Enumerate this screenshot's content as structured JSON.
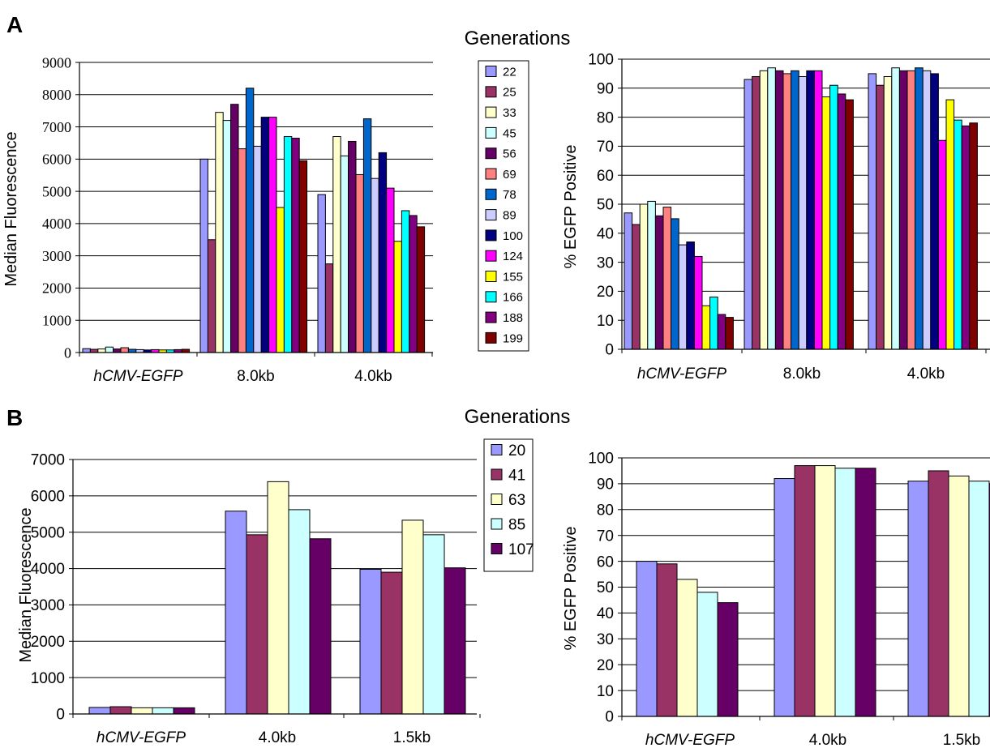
{
  "panels": {
    "A": {
      "label": "A",
      "generations_title": "Generations"
    },
    "B": {
      "label": "B",
      "generations_title": "Generations"
    }
  },
  "chart_data": [
    {
      "id": "A-left",
      "type": "bar",
      "ylabel": "Median Fluorescence",
      "xlabel": "",
      "categories": [
        "hCMV-EGFP",
        "8.0kb",
        "4.0kb"
      ],
      "ylim": [
        0,
        9000
      ],
      "yticks": [
        0,
        1000,
        2000,
        3000,
        4000,
        5000,
        6000,
        7000,
        8000,
        9000
      ],
      "grid": true,
      "series": [
        {
          "name": "22",
          "color": "#9999ff",
          "values": [
            120,
            6000,
            4900
          ]
        },
        {
          "name": "25",
          "color": "#993366",
          "values": [
            100,
            3500,
            2750
          ]
        },
        {
          "name": "33",
          "color": "#ffffcc",
          "values": [
            110,
            7450,
            6700
          ]
        },
        {
          "name": "45",
          "color": "#ccffff",
          "values": [
            170,
            7200,
            6100
          ]
        },
        {
          "name": "56",
          "color": "#660066",
          "values": [
            110,
            7700,
            6550
          ]
        },
        {
          "name": "69",
          "color": "#ff8080",
          "values": [
            150,
            6320,
            5520
          ]
        },
        {
          "name": "78",
          "color": "#0066cc",
          "values": [
            100,
            8200,
            7250
          ]
        },
        {
          "name": "89",
          "color": "#ccccff",
          "values": [
            90,
            6400,
            5400
          ]
        },
        {
          "name": "100",
          "color": "#000080",
          "values": [
            80,
            7300,
            6200
          ]
        },
        {
          "name": "124",
          "color": "#ff00ff",
          "values": [
            90,
            7300,
            5100
          ]
        },
        {
          "name": "155",
          "color": "#ffff00",
          "values": [
            80,
            4500,
            3450
          ]
        },
        {
          "name": "166",
          "color": "#00ffff",
          "values": [
            80,
            6700,
            4400
          ]
        },
        {
          "name": "188",
          "color": "#800080",
          "values": [
            90,
            6650,
            4250
          ]
        },
        {
          "name": "199",
          "color": "#800000",
          "values": [
            100,
            5950,
            3900
          ]
        }
      ]
    },
    {
      "id": "A-right",
      "type": "bar",
      "ylabel": "% EGFP Positive",
      "xlabel": "",
      "categories": [
        "hCMV-EGFP",
        "8.0kb",
        "4.0kb"
      ],
      "ylim": [
        0,
        100
      ],
      "yticks": [
        0,
        10,
        20,
        30,
        40,
        50,
        60,
        70,
        80,
        90,
        100
      ],
      "grid": true,
      "series": [
        {
          "name": "22",
          "color": "#9999ff",
          "values": [
            47,
            93,
            95
          ]
        },
        {
          "name": "25",
          "color": "#993366",
          "values": [
            43,
            94,
            91
          ]
        },
        {
          "name": "33",
          "color": "#ffffcc",
          "values": [
            50,
            96,
            94
          ]
        },
        {
          "name": "45",
          "color": "#ccffff",
          "values": [
            51,
            97,
            97
          ]
        },
        {
          "name": "56",
          "color": "#660066",
          "values": [
            46,
            96,
            96
          ]
        },
        {
          "name": "69",
          "color": "#ff8080",
          "values": [
            49,
            95,
            96
          ]
        },
        {
          "name": "78",
          "color": "#0066cc",
          "values": [
            45,
            96,
            97
          ]
        },
        {
          "name": "89",
          "color": "#ccccff",
          "values": [
            36,
            94,
            96
          ]
        },
        {
          "name": "100",
          "color": "#000080",
          "values": [
            37,
            96,
            95
          ]
        },
        {
          "name": "124",
          "color": "#ff00ff",
          "values": [
            32,
            96,
            72
          ]
        },
        {
          "name": "155",
          "color": "#ffff00",
          "values": [
            15,
            87,
            86
          ]
        },
        {
          "name": "166",
          "color": "#00ffff",
          "values": [
            18,
            91,
            79
          ]
        },
        {
          "name": "188",
          "color": "#800080",
          "values": [
            12,
            88,
            77
          ]
        },
        {
          "name": "199",
          "color": "#800000",
          "values": [
            11,
            86,
            78
          ]
        }
      ]
    },
    {
      "id": "B-left",
      "type": "bar",
      "ylabel": "Median Fluorescence",
      "xlabel": "",
      "categories": [
        "hCMV-EGFP",
        "4.0kb",
        "1.5kb"
      ],
      "ylim": [
        0,
        7000
      ],
      "yticks": [
        0,
        1000,
        2000,
        3000,
        4000,
        5000,
        6000,
        7000
      ],
      "grid": true,
      "series": [
        {
          "name": "20",
          "color": "#9999ff",
          "values": [
            180,
            5580,
            3980
          ]
        },
        {
          "name": "41",
          "color": "#993366",
          "values": [
            200,
            4930,
            3900
          ]
        },
        {
          "name": "63",
          "color": "#ffffcc",
          "values": [
            170,
            6390,
            5330
          ]
        },
        {
          "name": "85",
          "color": "#ccffff",
          "values": [
            170,
            5620,
            4930
          ]
        },
        {
          "name": "107",
          "color": "#660066",
          "values": [
            170,
            4820,
            4020
          ]
        }
      ]
    },
    {
      "id": "B-right",
      "type": "bar",
      "ylabel": "% EGFP Positive",
      "xlabel": "",
      "categories": [
        "hCMV-EGFP",
        "4.0kb",
        "1.5kb"
      ],
      "ylim": [
        0,
        100
      ],
      "yticks": [
        0,
        10,
        20,
        30,
        40,
        50,
        60,
        70,
        80,
        90,
        100
      ],
      "grid": true,
      "series": [
        {
          "name": "20",
          "color": "#9999ff",
          "values": [
            60,
            92,
            91
          ]
        },
        {
          "name": "41",
          "color": "#993366",
          "values": [
            59,
            97,
            95
          ]
        },
        {
          "name": "63",
          "color": "#ffffcc",
          "values": [
            53,
            97,
            93
          ]
        },
        {
          "name": "85",
          "color": "#ccffff",
          "values": [
            48,
            96,
            91
          ]
        },
        {
          "name": "107",
          "color": "#660066",
          "values": [
            44,
            96,
            90
          ]
        }
      ]
    }
  ]
}
